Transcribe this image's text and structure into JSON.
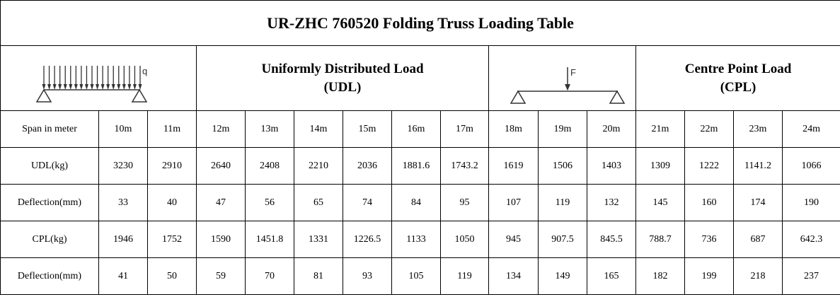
{
  "title": "UR-ZHC 760520 Folding Truss Loading Table",
  "header": {
    "udl_diagram_label": "q",
    "udl_title_line1": "Uniformly Distributed Load",
    "udl_title_line2": "(UDL)",
    "cpl_diagram_label": "F",
    "cpl_title_line1": "Centre Point Load",
    "cpl_title_line2": "(CPL)"
  },
  "span_row": {
    "label": "Span in meter",
    "values": [
      "10m",
      "11m",
      "12m",
      "13m",
      "14m",
      "15m",
      "16m",
      "17m",
      "18m",
      "19m",
      "20m",
      "21m",
      "22m",
      "23m",
      "24m"
    ]
  },
  "rows": [
    {
      "label": "UDL(kg)",
      "values": [
        "3230",
        "2910",
        "2640",
        "2408",
        "2210",
        "2036",
        "1881.6",
        "1743.2",
        "1619",
        "1506",
        "1403",
        "1309",
        "1222",
        "1141.2",
        "1066"
      ]
    },
    {
      "label": "Deflection(mm)",
      "values": [
        "33",
        "40",
        "47",
        "56",
        "65",
        "74",
        "84",
        "95",
        "107",
        "119",
        "132",
        "145",
        "160",
        "174",
        "190"
      ]
    },
    {
      "label": "CPL(kg)",
      "values": [
        "1946",
        "1752",
        "1590",
        "1451.8",
        "1331",
        "1226.5",
        "1133",
        "1050",
        "945",
        "907.5",
        "845.5",
        "788.7",
        "736",
        "687",
        "642.3"
      ]
    },
    {
      "label": "Deflection(mm)",
      "values": [
        "41",
        "50",
        "59",
        "70",
        "81",
        "93",
        "105",
        "119",
        "134",
        "149",
        "165",
        "182",
        "199",
        "218",
        "237"
      ]
    }
  ]
}
